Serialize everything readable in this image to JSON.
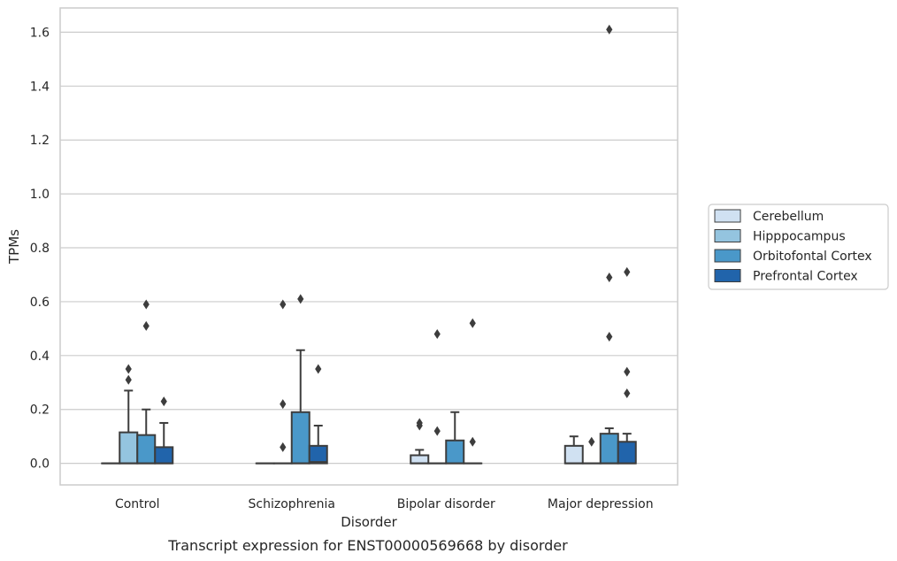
{
  "chart_data": {
    "type": "box",
    "caption": "Transcript expression for ENST00000569668 by disorder",
    "xlabel": "Disorder",
    "ylabel": "TPMs",
    "ylim": [
      -0.08,
      1.69
    ],
    "yticks": [
      "0.0",
      "0.2",
      "0.4",
      "0.6",
      "0.8",
      "1.0",
      "1.2",
      "1.4",
      "1.6"
    ],
    "grid": "horizontal",
    "legend_position": "right",
    "categories": [
      "Control",
      "Schizophrenia",
      "Bipolar disorder",
      "Major depression"
    ],
    "series": [
      {
        "name": "Cerebellum",
        "color": "#d0e1f2",
        "boxes": [
          {
            "q1": 0,
            "median": 0,
            "q3": 0,
            "whisker_low": 0,
            "whisker_high": 0,
            "outliers": []
          },
          {
            "q1": 0,
            "median": 0,
            "q3": 0,
            "whisker_low": 0,
            "whisker_high": 0,
            "outliers": []
          },
          {
            "q1": 0,
            "median": 0,
            "q3": 0.03,
            "whisker_low": 0,
            "whisker_high": 0.05,
            "outliers": [
              0.14,
              0.15
            ]
          },
          {
            "q1": 0,
            "median": 0,
            "q3": 0.065,
            "whisker_low": 0,
            "whisker_high": 0.1,
            "outliers": []
          }
        ]
      },
      {
        "name": "Hipppocampus",
        "color": "#94c4df",
        "boxes": [
          {
            "q1": 0,
            "median": 0,
            "q3": 0.115,
            "whisker_low": 0,
            "whisker_high": 0.27,
            "outliers": [
              0.31,
              0.35
            ]
          },
          {
            "q1": 0,
            "median": 0,
            "q3": 0,
            "whisker_low": 0,
            "whisker_high": 0,
            "outliers": [
              0.06,
              0.22,
              0.59
            ]
          },
          {
            "q1": 0,
            "median": 0,
            "q3": 0,
            "whisker_low": 0,
            "whisker_high": 0,
            "outliers": [
              0.12,
              0.48
            ]
          },
          {
            "q1": 0,
            "median": 0,
            "q3": 0,
            "whisker_low": 0,
            "whisker_high": 0,
            "outliers": [
              0.08
            ]
          }
        ]
      },
      {
        "name": "Orbitofontal Cortex",
        "color": "#4a98c9",
        "boxes": [
          {
            "q1": 0,
            "median": 0,
            "q3": 0.105,
            "whisker_low": 0,
            "whisker_high": 0.2,
            "outliers": [
              0.51,
              0.59
            ]
          },
          {
            "q1": 0,
            "median": 0,
            "q3": 0.19,
            "whisker_low": 0,
            "whisker_high": 0.42,
            "outliers": [
              0.61
            ]
          },
          {
            "q1": 0,
            "median": 0,
            "q3": 0.085,
            "whisker_low": 0,
            "whisker_high": 0.19,
            "outliers": []
          },
          {
            "q1": 0,
            "median": 0,
            "q3": 0.11,
            "whisker_low": 0,
            "whisker_high": 0.13,
            "outliers": [
              0.47,
              0.69,
              1.61
            ]
          }
        ]
      },
      {
        "name": "Prefrontal Cortex",
        "color": "#2164ab",
        "boxes": [
          {
            "q1": 0,
            "median": 0,
            "q3": 0.06,
            "whisker_low": 0,
            "whisker_high": 0.15,
            "outliers": [
              0.23
            ]
          },
          {
            "q1": 0,
            "median": 0.005,
            "q3": 0.065,
            "whisker_low": 0,
            "whisker_high": 0.14,
            "outliers": [
              0.35
            ]
          },
          {
            "q1": 0,
            "median": 0,
            "q3": 0,
            "whisker_low": 0,
            "whisker_high": 0,
            "outliers": [
              0.08,
              0.52
            ]
          },
          {
            "q1": 0,
            "median": 0,
            "q3": 0.08,
            "whisker_low": 0,
            "whisker_high": 0.11,
            "outliers": [
              0.26,
              0.34,
              0.71
            ]
          }
        ]
      }
    ]
  }
}
